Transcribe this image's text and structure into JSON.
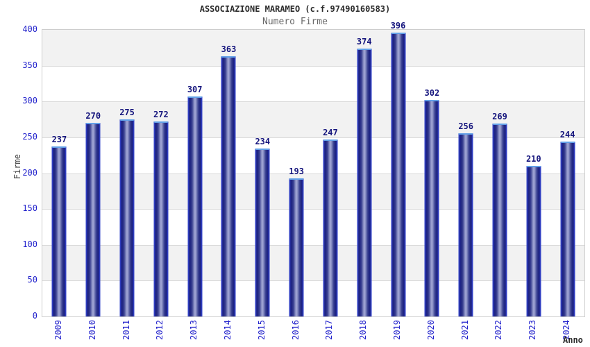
{
  "header": {
    "title": "ASSOCIAZIONE MARAMEO (c.f.97490160583)",
    "subtitle": "Numero Firme"
  },
  "chart_data": {
    "type": "bar",
    "title": "ASSOCIAZIONE MARAMEO (c.f.97490160583)",
    "subtitle": "Numero Firme",
    "xlabel": "Anno",
    "ylabel": "Firme",
    "categories": [
      "2009",
      "2010",
      "2011",
      "2012",
      "2013",
      "2014",
      "2015",
      "2016",
      "2017",
      "2018",
      "2019",
      "2020",
      "2021",
      "2022",
      "2023",
      "2024"
    ],
    "values": [
      237,
      270,
      275,
      272,
      307,
      363,
      234,
      193,
      247,
      374,
      396,
      302,
      256,
      269,
      210,
      244
    ],
    "ylim": [
      0,
      400
    ],
    "yticks": [
      0,
      50,
      100,
      150,
      200,
      250,
      300,
      350,
      400
    ],
    "grid": true,
    "banded_background": true,
    "legend": "none"
  },
  "colors": {
    "bar_dark": "#1d2280",
    "bar_light": "#a4a8d8",
    "bar_border": "#3545c8",
    "bar_cap": "#62a0e8",
    "tick_label": "#2222cc",
    "value_label": "#15157d",
    "band_gray": "#f2f2f2",
    "gridline": "#d9d9d9",
    "plot_border": "#cdcdcd",
    "title": "#2b2b2b",
    "subtitle": "#686868"
  }
}
